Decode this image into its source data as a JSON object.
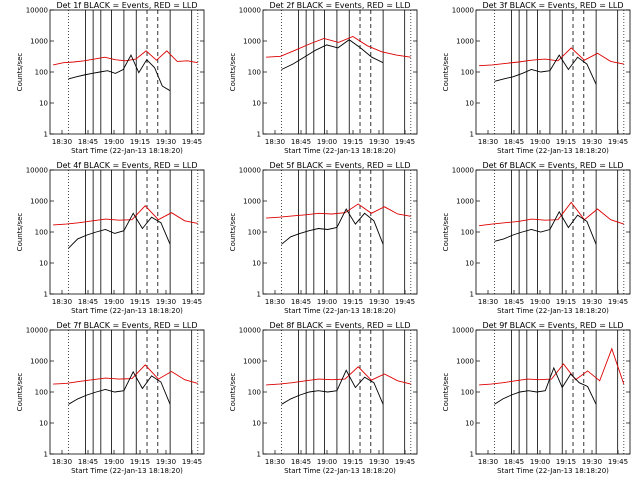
{
  "chart_data": [
    {
      "type": "line",
      "title": "Det 1f BLACK = Events, RED = LLD",
      "xlabel": "Start Time (22-Jan-13 18:18:20)",
      "ylabel": "Counts/sec",
      "x_ticks": [
        "18:30",
        "18:45",
        "19:00",
        "19:15",
        "19:30",
        "19:45"
      ],
      "y_ticks": [
        "1",
        "10",
        "100",
        "1000",
        "10000"
      ],
      "y_scale": "log",
      "ylim": [
        1,
        10000
      ],
      "series": [
        {
          "name": "Events",
          "color": "#000000",
          "values": [
            60,
            70,
            80,
            90,
            100,
            110,
            90,
            120,
            350,
            95,
            250,
            140,
            35,
            25
          ]
        },
        {
          "name": "LLD",
          "color": "#dd0000",
          "values": [
            170,
            200,
            210,
            230,
            260,
            300,
            250,
            230,
            260,
            480,
            240,
            480,
            220,
            230,
            200
          ]
        }
      ]
    },
    {
      "type": "line",
      "title": "Det 2f BLACK = Events, RED = LLD",
      "xlabel": "Start Time (22-Jan-13 18:18:20)",
      "ylabel": "Counts/sec",
      "x_ticks": [
        "18:30",
        "18:45",
        "19:00",
        "19:15",
        "19:30",
        "19:45"
      ],
      "y_ticks": [
        "1",
        "10",
        "100",
        "1000",
        "10000"
      ],
      "y_scale": "log",
      "ylim": [
        1,
        10000
      ],
      "series": [
        {
          "name": "Events",
          "color": "#000000",
          "values": [
            120,
            180,
            300,
            500,
            750,
            600,
            1100,
            600,
            300,
            200
          ]
        },
        {
          "name": "LLD",
          "color": "#dd0000",
          "values": [
            300,
            320,
            500,
            800,
            1200,
            900,
            1400,
            700,
            450,
            350,
            300
          ]
        }
      ]
    },
    {
      "type": "line",
      "title": "Det 3f BLACK = Events, RED = LLD",
      "xlabel": "Start Time (22-Jan-13 18:18:20)",
      "ylabel": "Counts/sec",
      "x_ticks": [
        "18:30",
        "18:45",
        "19:00",
        "19:15",
        "19:30",
        "19:45"
      ],
      "y_ticks": [
        "1",
        "10",
        "100",
        "1000",
        "10000"
      ],
      "y_scale": "log",
      "ylim": [
        1,
        10000
      ],
      "series": [
        {
          "name": "Events",
          "color": "#000000",
          "values": [
            50,
            60,
            70,
            90,
            120,
            100,
            110,
            350,
            120,
            300,
            180,
            40
          ]
        },
        {
          "name": "LLD",
          "color": "#dd0000",
          "values": [
            160,
            170,
            190,
            210,
            240,
            260,
            230,
            600,
            240,
            400,
            220,
            180
          ]
        }
      ]
    },
    {
      "type": "line",
      "title": "Det 4f BLACK = Events, RED = LLD",
      "xlabel": "Start Time (22-Jan-13 18:18:20)",
      "ylabel": "Counts/sec",
      "x_ticks": [
        "18:30",
        "18:45",
        "19:00",
        "19:15",
        "19:30",
        "19:45"
      ],
      "y_ticks": [
        "1",
        "10",
        "100",
        "1000",
        "10000"
      ],
      "y_scale": "log",
      "ylim": [
        1,
        10000
      ],
      "series": [
        {
          "name": "Events",
          "color": "#000000",
          "values": [
            30,
            60,
            80,
            100,
            120,
            90,
            110,
            400,
            130,
            300,
            200,
            40
          ]
        },
        {
          "name": "LLD",
          "color": "#dd0000",
          "values": [
            170,
            180,
            200,
            230,
            260,
            240,
            250,
            700,
            250,
            420,
            230,
            190
          ]
        }
      ]
    },
    {
      "type": "line",
      "title": "Det 5f BLACK = Events, RED = LLD",
      "xlabel": "Start Time (22-Jan-13 18:18:20)",
      "ylabel": "Counts/sec",
      "x_ticks": [
        "18:30",
        "18:45",
        "19:00",
        "19:15",
        "19:30",
        "19:45"
      ],
      "y_ticks": [
        "1",
        "10",
        "100",
        "1000",
        "10000"
      ],
      "y_scale": "log",
      "ylim": [
        1,
        10000
      ],
      "series": [
        {
          "name": "Events",
          "color": "#000000",
          "values": [
            40,
            70,
            90,
            110,
            130,
            120,
            140,
            550,
            180,
            400,
            230,
            40
          ]
        },
        {
          "name": "LLD",
          "color": "#dd0000",
          "values": [
            280,
            300,
            330,
            360,
            400,
            380,
            420,
            800,
            400,
            650,
            380,
            320
          ]
        }
      ]
    },
    {
      "type": "line",
      "title": "Det 6f BLACK = Events, RED = LLD",
      "xlabel": "Start Time (22-Jan-13 18:18:20)",
      "ylabel": "Counts/sec",
      "x_ticks": [
        "18:30",
        "18:45",
        "19:00",
        "19:15",
        "19:30",
        "19:45"
      ],
      "y_ticks": [
        "1",
        "10",
        "100",
        "1000",
        "10000"
      ],
      "y_scale": "log",
      "ylim": [
        1,
        10000
      ],
      "series": [
        {
          "name": "Events",
          "color": "#000000",
          "values": [
            50,
            60,
            80,
            100,
            120,
            100,
            120,
            450,
            140,
            350,
            220,
            40
          ]
        },
        {
          "name": "LLD",
          "color": "#dd0000",
          "values": [
            160,
            180,
            200,
            220,
            260,
            240,
            250,
            900,
            250,
            550,
            250,
            180
          ]
        }
      ]
    },
    {
      "type": "line",
      "title": "Det 7f BLACK = Events, RED = LLD",
      "xlabel": "Start Time (22-Jan-13 18:18:20)",
      "ylabel": "Counts/sec",
      "x_ticks": [
        "18:30",
        "18:45",
        "19:00",
        "19:15",
        "19:30",
        "19:45"
      ],
      "y_ticks": [
        "1",
        "10",
        "100",
        "1000",
        "10000"
      ],
      "y_scale": "log",
      "ylim": [
        1,
        10000
      ],
      "series": [
        {
          "name": "Events",
          "color": "#000000",
          "values": [
            40,
            60,
            80,
            100,
            120,
            100,
            110,
            450,
            130,
            330,
            210,
            40
          ]
        },
        {
          "name": "LLD",
          "color": "#dd0000",
          "values": [
            180,
            190,
            220,
            250,
            280,
            260,
            270,
            750,
            260,
            460,
            250,
            190
          ]
        }
      ]
    },
    {
      "type": "line",
      "title": "Det 8f BLACK = Events, RED = LLD",
      "xlabel": "Start Time (22-Jan-13 18:18:20)",
      "ylabel": "Counts/sec",
      "x_ticks": [
        "18:30",
        "18:45",
        "19:00",
        "19:15",
        "19:30",
        "19:45"
      ],
      "y_ticks": [
        "1",
        "10",
        "100",
        "1000",
        "10000"
      ],
      "y_scale": "log",
      "ylim": [
        1,
        10000
      ],
      "series": [
        {
          "name": "Events",
          "color": "#000000",
          "values": [
            40,
            60,
            80,
            100,
            110,
            100,
            110,
            500,
            140,
            300,
            200,
            40
          ]
        },
        {
          "name": "LLD",
          "color": "#dd0000",
          "values": [
            170,
            180,
            200,
            230,
            260,
            250,
            260,
            650,
            240,
            380,
            230,
            180
          ]
        }
      ]
    },
    {
      "type": "line",
      "title": "Det 9f BLACK = Events, RED = LLD",
      "xlabel": "Start Time (22-Jan-13 18:18:20)",
      "ylabel": "Counts/sec",
      "x_ticks": [
        "18:30",
        "18:45",
        "19:00",
        "19:15",
        "19:30",
        "19:45"
      ],
      "y_ticks": [
        "1",
        "10",
        "100",
        "1000",
        "10000"
      ],
      "y_scale": "log",
      "ylim": [
        1,
        10000
      ],
      "series": [
        {
          "name": "Events",
          "color": "#000000",
          "values": [
            40,
            60,
            80,
            100,
            110,
            100,
            110,
            600,
            140,
            380,
            200,
            150,
            40
          ]
        },
        {
          "name": "LLD",
          "color": "#dd0000",
          "values": [
            170,
            180,
            200,
            230,
            260,
            250,
            260,
            800,
            250,
            480,
            230,
            2500,
            180
          ]
        }
      ]
    }
  ]
}
